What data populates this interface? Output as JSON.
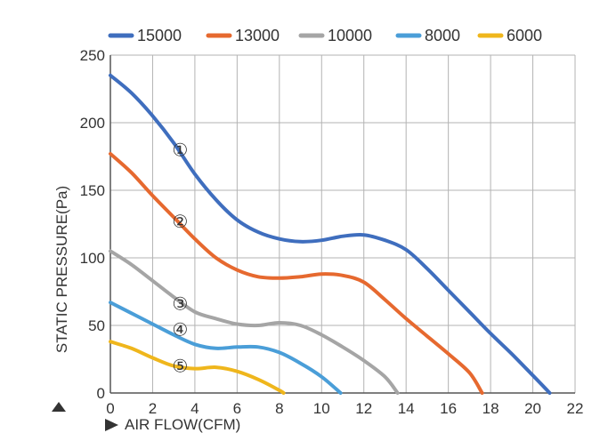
{
  "chart_data": {
    "type": "line",
    "title": "",
    "xlabel": "AIR FLOW(CFM)",
    "ylabel": "STATIC PRESSURE(Pa)",
    "xlim": [
      0,
      22
    ],
    "ylim": [
      0,
      250
    ],
    "x_ticks": [
      "0",
      "2",
      "4",
      "6",
      "8",
      "10",
      "12",
      "14",
      "16",
      "18",
      "20",
      "22"
    ],
    "y_ticks": [
      "0",
      "50",
      "100",
      "150",
      "200",
      "250"
    ],
    "grid": true,
    "legend_position": "top",
    "series": [
      {
        "name": "15000",
        "color": "#3F6EBE",
        "label": "①",
        "label_at": [
          3.3,
          180
        ],
        "points": [
          [
            0,
            235
          ],
          [
            1,
            222
          ],
          [
            2,
            205
          ],
          [
            3,
            185
          ],
          [
            4,
            162
          ],
          [
            5,
            143
          ],
          [
            6,
            128
          ],
          [
            7,
            119
          ],
          [
            8,
            114
          ],
          [
            9,
            112
          ],
          [
            10,
            113
          ],
          [
            11,
            116
          ],
          [
            12,
            117
          ],
          [
            13,
            113
          ],
          [
            14,
            106
          ],
          [
            15,
            92
          ],
          [
            16,
            76
          ],
          [
            17,
            60
          ],
          [
            18,
            44
          ],
          [
            19,
            29
          ],
          [
            20,
            13
          ],
          [
            20.8,
            0
          ]
        ]
      },
      {
        "name": "13000",
        "color": "#E6692F",
        "label": "②",
        "label_at": [
          3.3,
          127
        ],
        "points": [
          [
            0,
            177
          ],
          [
            1,
            163
          ],
          [
            2,
            146
          ],
          [
            3,
            130
          ],
          [
            4,
            114
          ],
          [
            5,
            100
          ],
          [
            6,
            91
          ],
          [
            7,
            86
          ],
          [
            8,
            85
          ],
          [
            9,
            86
          ],
          [
            10,
            88
          ],
          [
            11,
            87
          ],
          [
            12,
            82
          ],
          [
            13,
            69
          ],
          [
            14,
            55
          ],
          [
            15,
            42
          ],
          [
            16,
            29
          ],
          [
            17,
            15
          ],
          [
            17.6,
            0
          ]
        ]
      },
      {
        "name": "10000",
        "color": "#A5A5A5",
        "label": "③",
        "label_at": [
          3.3,
          66
        ],
        "points": [
          [
            0,
            105
          ],
          [
            1,
            95
          ],
          [
            2,
            83
          ],
          [
            3,
            71
          ],
          [
            4,
            60
          ],
          [
            5,
            55
          ],
          [
            6,
            51
          ],
          [
            7,
            50
          ],
          [
            8,
            52
          ],
          [
            9,
            50
          ],
          [
            10,
            43
          ],
          [
            11,
            34
          ],
          [
            12,
            24
          ],
          [
            13,
            12
          ],
          [
            13.6,
            0
          ]
        ]
      },
      {
        "name": "8000",
        "color": "#4A9ED8",
        "label": "④",
        "label_at": [
          3.3,
          47
        ],
        "points": [
          [
            0,
            67
          ],
          [
            1,
            59
          ],
          [
            2,
            51
          ],
          [
            3,
            43
          ],
          [
            4,
            36
          ],
          [
            5,
            33
          ],
          [
            6,
            34
          ],
          [
            7,
            34
          ],
          [
            8,
            30
          ],
          [
            9,
            22
          ],
          [
            10,
            12
          ],
          [
            10.9,
            0
          ]
        ]
      },
      {
        "name": "6000",
        "color": "#EFB61C",
        "label": "⑤",
        "label_at": [
          3.3,
          20
        ],
        "points": [
          [
            0,
            38
          ],
          [
            1,
            33
          ],
          [
            2,
            26
          ],
          [
            3,
            20
          ],
          [
            4,
            18
          ],
          [
            5,
            19
          ],
          [
            6,
            16
          ],
          [
            7,
            10
          ],
          [
            8,
            2
          ],
          [
            8.2,
            0
          ]
        ]
      }
    ]
  }
}
